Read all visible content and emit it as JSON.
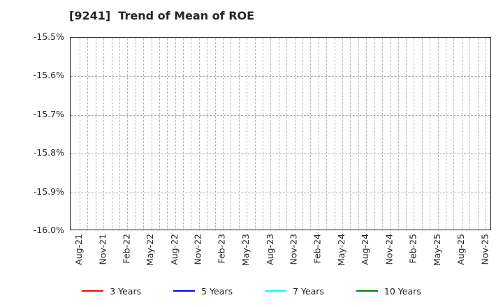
{
  "chart": {
    "title": "[9241]  Trend of Mean of ROE",
    "colors": {
      "background": "#ffffff",
      "axis_border": "#1a1a1a",
      "gridline": "#a6a6a6",
      "text": "#262626"
    }
  },
  "chart_data": {
    "type": "line",
    "title": "[9241]  Trend of Mean of ROE",
    "xlabel": "",
    "ylabel": "",
    "ylim": [
      -16.0,
      -15.5
    ],
    "y_tick_labels": [
      "-15.5%",
      "-15.6%",
      "-15.7%",
      "-15.8%",
      "-15.9%",
      "-16.0%"
    ],
    "x_tick_labels": [
      "Aug-21",
      "Nov-21",
      "Feb-22",
      "May-22",
      "Aug-22",
      "Nov-22",
      "Feb-23",
      "May-23",
      "Aug-23",
      "Nov-23",
      "Feb-24",
      "May-24",
      "Aug-24",
      "Nov-24",
      "Feb-25",
      "May-25",
      "Aug-25",
      "Nov-25"
    ],
    "x_minor_gridlines_per_label": 3,
    "grid": true,
    "legend_position": "bottom",
    "series": [
      {
        "name": "3 Years",
        "color": "#ff0000",
        "values": []
      },
      {
        "name": "5 Years",
        "color": "#0000ff",
        "values": []
      },
      {
        "name": "7 Years",
        "color": "#00ffff",
        "values": []
      },
      {
        "name": "10 Years",
        "color": "#008000",
        "values": []
      }
    ]
  }
}
